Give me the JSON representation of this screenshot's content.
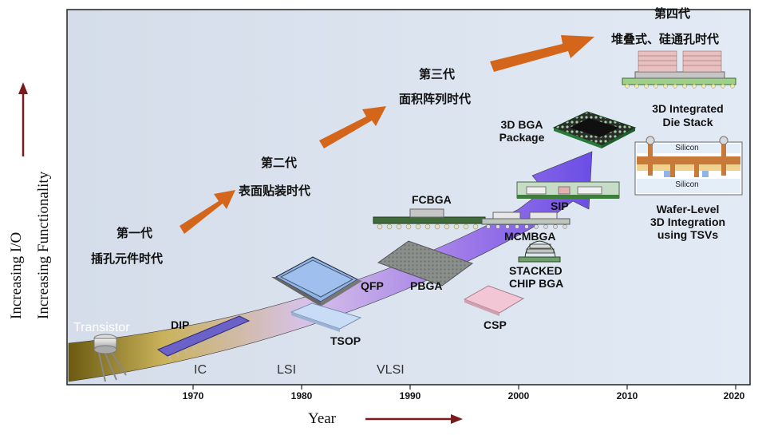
{
  "axes": {
    "y_label_1": "Increasing I/O",
    "y_label_2": "Increasing Functionality",
    "x_label": "Year",
    "years": [
      "1970",
      "1980",
      "1990",
      "2000",
      "2010",
      "2020"
    ],
    "eras": [
      "IC",
      "LSI",
      "VLSI"
    ]
  },
  "generations": {
    "gen1": {
      "title": "第一代",
      "subtitle": "插孔元件时代"
    },
    "gen2": {
      "title": "第二代",
      "subtitle": "表面贴装时代"
    },
    "gen3": {
      "title": "第三代",
      "subtitle": "面积阵列时代"
    },
    "gen4": {
      "title": "第四代",
      "subtitle": "堆叠式、硅通孔时代"
    }
  },
  "packages": {
    "transistor": "Transistor",
    "dip": "DIP",
    "qfp": "QFP",
    "tsop": "TSOP",
    "pbga": "PBGA",
    "fcbga": "FCBGA",
    "csp": "CSP",
    "mcmbga": "MCMBGA",
    "stacked_line1": "STACKED",
    "stacked_line2": "CHIP BGA",
    "sip": "SIP",
    "bga3d_line1": "3D BGA",
    "bga3d_line2": "Package",
    "die_stack_line1": "3D Integrated",
    "die_stack_line2": "Die Stack",
    "wafer_line1": "Wafer-Level",
    "wafer_line2": "3D Integration",
    "wafer_line3": "using TSVs",
    "silicon_top": "Silicon",
    "silicon_bottom": "Silicon"
  },
  "colors": {
    "plot_bg": "#dde7f3",
    "gen_arrow": "#d4661c",
    "axis_arrow": "#7b1a1a",
    "trend_start": "#6b5a10",
    "trend_mid": "#b98ae0",
    "trend_end": "#6b4de6"
  }
}
